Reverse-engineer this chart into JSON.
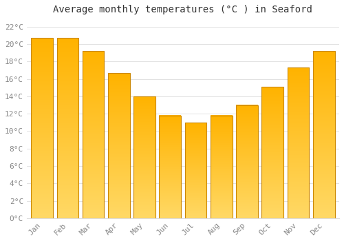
{
  "title": "Average monthly temperatures (°C ) in Seaford",
  "months": [
    "Jan",
    "Feb",
    "Mar",
    "Apr",
    "May",
    "Jun",
    "Jul",
    "Aug",
    "Sep",
    "Oct",
    "Nov",
    "Dec"
  ],
  "values": [
    20.7,
    20.7,
    19.2,
    16.7,
    14.0,
    11.8,
    11.0,
    11.8,
    13.0,
    15.1,
    17.3,
    19.2
  ],
  "bar_color_top": "#FFB300",
  "bar_color_bottom": "#FFD966",
  "bar_edge_color": "#CC8800",
  "yticks": [
    0,
    2,
    4,
    6,
    8,
    10,
    12,
    14,
    16,
    18,
    20,
    22
  ],
  "ytick_labels": [
    "0°C",
    "2°C",
    "4°C",
    "6°C",
    "8°C",
    "10°C",
    "12°C",
    "14°C",
    "16°C",
    "18°C",
    "20°C",
    "22°C"
  ],
  "ylim": [
    0,
    23
  ],
  "bg_color": "#FFFFFF",
  "grid_color": "#DDDDDD",
  "title_fontsize": 10,
  "tick_fontsize": 8,
  "tick_color": "#888888",
  "font_family": "monospace",
  "bar_width": 0.85
}
